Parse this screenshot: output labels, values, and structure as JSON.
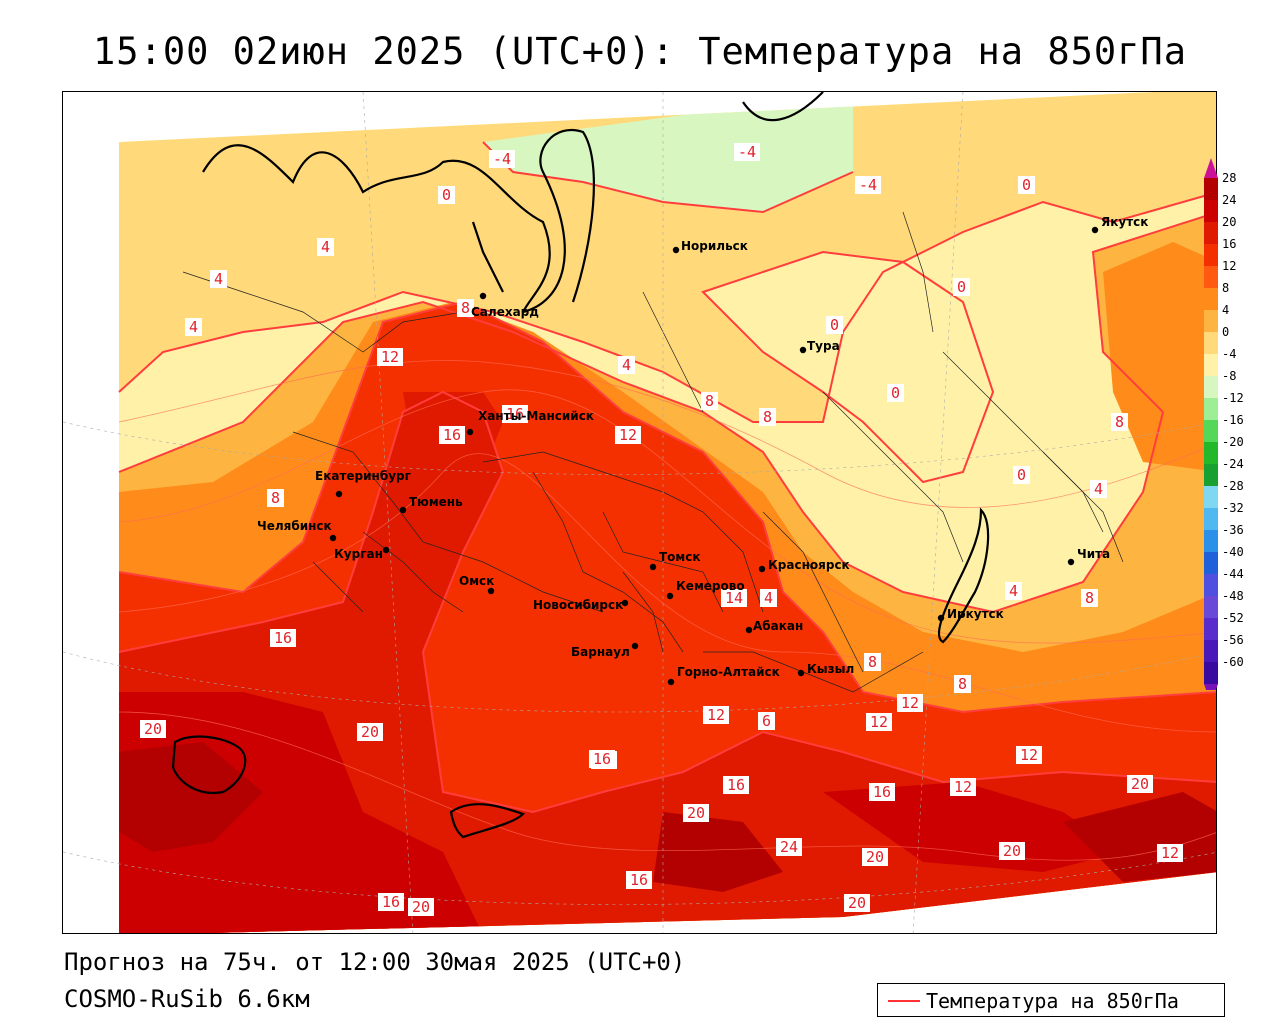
{
  "title": "15:00 02июн 2025 (UTC+0): Температура на 850гПа",
  "footer": {
    "forecast": "Прогноз на 75ч. от 12:00 30мая 2025 (UTC+0)",
    "model": "COSMO-RuSib 6.6км"
  },
  "legend": {
    "label": "Температура на 850гПа",
    "line_color": "#ff3333"
  },
  "colorbar": {
    "levels": [
      "28",
      "24",
      "20",
      "16",
      "12",
      "8",
      "4",
      "0",
      "-4",
      "-8",
      "-12",
      "-16",
      "-20",
      "-24",
      "-28",
      "-32",
      "-36",
      "-40",
      "-44",
      "-48",
      "-52",
      "-56",
      "-60"
    ],
    "colors": [
      "#b30000",
      "#cc0000",
      "#e01a00",
      "#f53000",
      "#ff5a10",
      "#ff8c1a",
      "#fdb440",
      "#ffd97a",
      "#fff2a8",
      "#d8f7c0",
      "#9eee96",
      "#55d85a",
      "#22b82a",
      "#18a030",
      "#7fd8f0",
      "#50b8f0",
      "#2a90e8",
      "#2060d8",
      "#5050e0",
      "#6a48d8",
      "#5a2ccc",
      "#4a18b8",
      "#3a0aa0"
    ]
  },
  "cities": [
    {
      "name": "Салехард"
    },
    {
      "name": "Норильск"
    },
    {
      "name": "Якутск"
    },
    {
      "name": "Тура"
    },
    {
      "name": "Ханты-Мансийск"
    },
    {
      "name": "Екатеринбург"
    },
    {
      "name": "Тюмень"
    },
    {
      "name": "Челябинск"
    },
    {
      "name": "Курган"
    },
    {
      "name": "Омск"
    },
    {
      "name": "Новосибирск"
    },
    {
      "name": "Томск"
    },
    {
      "name": "Кемерово"
    },
    {
      "name": "Барнаул"
    },
    {
      "name": "Красноярск"
    },
    {
      "name": "Абакан"
    },
    {
      "name": "Кызыл"
    },
    {
      "name": "Горно-Алтайск"
    },
    {
      "name": "Иркутск"
    },
    {
      "name": "Чита"
    }
  ],
  "isotherm_labels": [
    "-4",
    "-4",
    "-4",
    "0",
    "0",
    "0",
    "0",
    "0",
    "0",
    "4",
    "4",
    "4",
    "4",
    "4",
    "4",
    "4",
    "8",
    "8",
    "8",
    "8",
    "8",
    "8",
    "8",
    "8",
    "12",
    "12",
    "12",
    "12",
    "12",
    "12",
    "12",
    "12",
    "12",
    "16",
    "16",
    "16",
    "16",
    "16",
    "16",
    "16",
    "16",
    "20",
    "20",
    "20",
    "20",
    "20",
    "20",
    "20",
    "20",
    "24",
    "14",
    "6"
  ]
}
